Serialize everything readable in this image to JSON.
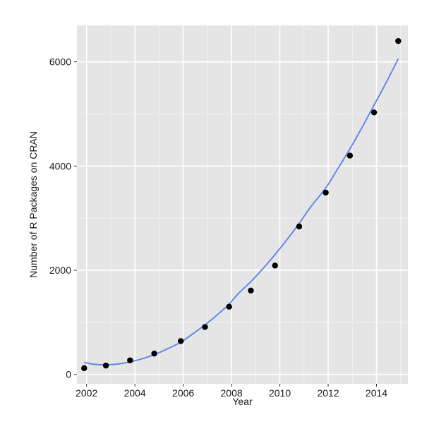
{
  "chart_data": {
    "type": "scatter",
    "xlabel": "Year",
    "ylabel": "Number of R Packages on CRAN",
    "xlim": [
      2001.6,
      2015.3
    ],
    "ylim": [
      -180,
      6700
    ],
    "x_ticks": [
      2002,
      2004,
      2006,
      2008,
      2010,
      2012,
      2014
    ],
    "y_ticks": [
      0,
      2000,
      4000,
      6000
    ],
    "grid": true,
    "background": "#e5e5e5",
    "grid_major_color": "#ffffff",
    "grid_minor_color": "#f2f2f2",
    "point_color": "#000000",
    "smooth_color": "#5a7ff0",
    "series": [
      {
        "kind": "points",
        "x": [
          2001.9,
          2002.8,
          2003.8,
          2004.8,
          2005.9,
          2006.9,
          2007.9,
          2008.8,
          2009.8,
          2010.8,
          2011.9,
          2012.9,
          2013.9,
          2014.9
        ],
        "y": [
          120,
          170,
          270,
          400,
          640,
          910,
          1300,
          1610,
          2090,
          2840,
          3490,
          4200,
          5030,
          6400
        ]
      },
      {
        "kind": "smooth",
        "x": [
          2001.9,
          2002.3,
          2002.8,
          2003.3,
          2003.8,
          2004.3,
          2004.8,
          2005.3,
          2005.9,
          2006.4,
          2006.9,
          2007.4,
          2007.9,
          2008.3,
          2008.8,
          2009.3,
          2009.8,
          2010.3,
          2010.8,
          2011.3,
          2011.9,
          2012.4,
          2012.9,
          2013.4,
          2013.9,
          2014.4,
          2014.9
        ],
        "y": [
          230,
          195,
          185,
          200,
          240,
          300,
          380,
          480,
          620,
          780,
          950,
          1140,
          1350,
          1560,
          1780,
          2030,
          2300,
          2590,
          2900,
          3230,
          3580,
          3950,
          4330,
          4740,
          5170,
          5600,
          6060
        ]
      }
    ]
  }
}
